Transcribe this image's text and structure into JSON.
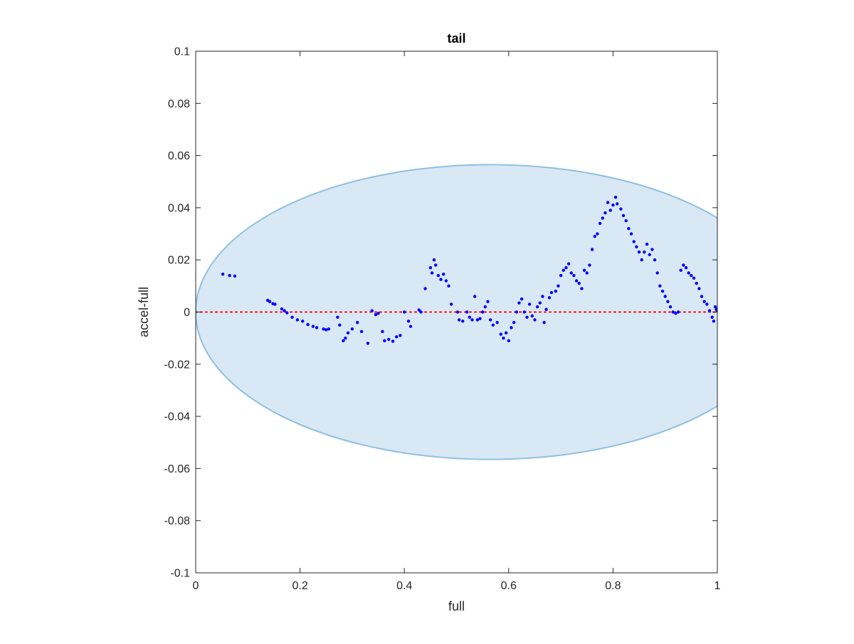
{
  "chart_data": {
    "type": "scatter",
    "title": "tail",
    "xlabel": "full",
    "ylabel": "accel-full",
    "xlim": [
      0,
      1
    ],
    "ylim": [
      -0.1,
      0.1
    ],
    "x_ticks": [
      0,
      0.2,
      0.4,
      0.6,
      0.8,
      1
    ],
    "x_tick_labels": [
      "0",
      "0.2",
      "0.4",
      "0.6",
      "0.8",
      "1"
    ],
    "y_ticks": [
      -0.1,
      -0.08,
      -0.06,
      -0.04,
      -0.02,
      0,
      0.02,
      0.04,
      0.06,
      0.08,
      0.1
    ],
    "y_tick_labels": [
      "-0.1",
      "-0.08",
      "-0.06",
      "-0.04",
      "-0.02",
      "0",
      "0.02",
      "0.04",
      "0.06",
      "0.08",
      "0.1"
    ],
    "grid": false,
    "colors": {
      "points": "#0000ff",
      "reference_line": "#ff0000",
      "ellipse_fill": "#d9e8f5",
      "ellipse_edge": "#8ec0e0",
      "axes": "#262626"
    },
    "ellipse": {
      "center": [
        0.565,
        0
      ],
      "radius_x": 0.565,
      "radius_y": 0.0565
    },
    "reference_line": {
      "y": 0
    },
    "series": [
      {
        "points": [
          [
            0.052,
            0.0145
          ],
          [
            0.065,
            0.014
          ],
          [
            0.075,
            0.0138
          ],
          [
            0.138,
            0.0045
          ],
          [
            0.142,
            0.004
          ],
          [
            0.148,
            0.0032
          ],
          [
            0.152,
            0.003
          ],
          [
            0.165,
            0.0012
          ],
          [
            0.17,
            0.0005
          ],
          [
            0.175,
            -0.0003
          ],
          [
            0.185,
            -0.002
          ],
          [
            0.195,
            -0.003
          ],
          [
            0.205,
            -0.0035
          ],
          [
            0.215,
            -0.0048
          ],
          [
            0.225,
            -0.0055
          ],
          [
            0.232,
            -0.006
          ],
          [
            0.245,
            -0.0065
          ],
          [
            0.25,
            -0.0068
          ],
          [
            0.255,
            -0.0065
          ],
          [
            0.272,
            -0.002
          ],
          [
            0.276,
            -0.005
          ],
          [
            0.283,
            -0.011
          ],
          [
            0.287,
            -0.01
          ],
          [
            0.292,
            -0.008
          ],
          [
            0.3,
            -0.0065
          ],
          [
            0.31,
            -0.004
          ],
          [
            0.318,
            -0.0075
          ],
          [
            0.33,
            -0.012
          ],
          [
            0.338,
            0.0005
          ],
          [
            0.345,
            -0.001
          ],
          [
            0.35,
            -0.0005
          ],
          [
            0.358,
            -0.0075
          ],
          [
            0.362,
            -0.011
          ],
          [
            0.37,
            -0.0105
          ],
          [
            0.378,
            -0.0112
          ],
          [
            0.385,
            -0.0095
          ],
          [
            0.392,
            -0.009
          ],
          [
            0.4,
            0.0
          ],
          [
            0.408,
            -0.0035
          ],
          [
            0.412,
            -0.0055
          ],
          [
            0.428,
            0.0008
          ],
          [
            0.432,
            0.0
          ],
          [
            0.44,
            0.009
          ],
          [
            0.45,
            0.017
          ],
          [
            0.453,
            0.015
          ],
          [
            0.457,
            0.02
          ],
          [
            0.46,
            0.018
          ],
          [
            0.465,
            0.014
          ],
          [
            0.47,
            0.0125
          ],
          [
            0.475,
            0.0145
          ],
          [
            0.48,
            0.012
          ],
          [
            0.485,
            0.01
          ],
          [
            0.49,
            0.003
          ],
          [
            0.502,
            0.0
          ],
          [
            0.505,
            -0.003
          ],
          [
            0.512,
            -0.0035
          ],
          [
            0.52,
            0.0
          ],
          [
            0.525,
            -0.002
          ],
          [
            0.53,
            -0.003
          ],
          [
            0.535,
            0.006
          ],
          [
            0.54,
            -0.003
          ],
          [
            0.545,
            -0.0025
          ],
          [
            0.55,
            0.0
          ],
          [
            0.555,
            0.002
          ],
          [
            0.56,
            0.004
          ],
          [
            0.565,
            -0.003
          ],
          [
            0.57,
            -0.005
          ],
          [
            0.578,
            -0.004
          ],
          [
            0.585,
            -0.0085
          ],
          [
            0.59,
            -0.01
          ],
          [
            0.595,
            -0.008
          ],
          [
            0.6,
            -0.011
          ],
          [
            0.605,
            -0.006
          ],
          [
            0.61,
            -0.004
          ],
          [
            0.615,
            0.0
          ],
          [
            0.62,
            0.0035
          ],
          [
            0.625,
            0.005
          ],
          [
            0.63,
            0.0
          ],
          [
            0.635,
            -0.002
          ],
          [
            0.64,
            0.003
          ],
          [
            0.645,
            -0.0015
          ],
          [
            0.65,
            -0.003
          ],
          [
            0.655,
            0.002
          ],
          [
            0.66,
            0.0035
          ],
          [
            0.665,
            0.006
          ],
          [
            0.668,
            -0.004
          ],
          [
            0.672,
            0.001
          ],
          [
            0.678,
            0.0055
          ],
          [
            0.682,
            0.0075
          ],
          [
            0.69,
            0.008
          ],
          [
            0.695,
            0.01
          ],
          [
            0.7,
            0.014
          ],
          [
            0.705,
            0.016
          ],
          [
            0.71,
            0.017
          ],
          [
            0.715,
            0.0185
          ],
          [
            0.72,
            0.015
          ],
          [
            0.725,
            0.014
          ],
          [
            0.73,
            0.012
          ],
          [
            0.735,
            0.011
          ],
          [
            0.74,
            0.009
          ],
          [
            0.745,
            0.016
          ],
          [
            0.75,
            0.015
          ],
          [
            0.755,
            0.018
          ],
          [
            0.76,
            0.024
          ],
          [
            0.765,
            0.029
          ],
          [
            0.77,
            0.03
          ],
          [
            0.775,
            0.034
          ],
          [
            0.78,
            0.036
          ],
          [
            0.785,
            0.038
          ],
          [
            0.79,
            0.042
          ],
          [
            0.795,
            0.039
          ],
          [
            0.8,
            0.041
          ],
          [
            0.805,
            0.044
          ],
          [
            0.808,
            0.0415
          ],
          [
            0.815,
            0.0395
          ],
          [
            0.82,
            0.037
          ],
          [
            0.825,
            0.035
          ],
          [
            0.83,
            0.032
          ],
          [
            0.835,
            0.03
          ],
          [
            0.84,
            0.027
          ],
          [
            0.845,
            0.025
          ],
          [
            0.85,
            0.023
          ],
          [
            0.855,
            0.02
          ],
          [
            0.86,
            0.023
          ],
          [
            0.865,
            0.026
          ],
          [
            0.87,
            0.022
          ],
          [
            0.875,
            0.024
          ],
          [
            0.88,
            0.02
          ],
          [
            0.885,
            0.015
          ],
          [
            0.89,
            0.01
          ],
          [
            0.895,
            0.008
          ],
          [
            0.9,
            0.006
          ],
          [
            0.905,
            0.004
          ],
          [
            0.91,
            0.002
          ],
          [
            0.915,
            0.0
          ],
          [
            0.92,
            -0.0005
          ],
          [
            0.925,
            0.0
          ],
          [
            0.93,
            0.016
          ],
          [
            0.935,
            0.018
          ],
          [
            0.94,
            0.017
          ],
          [
            0.945,
            0.015
          ],
          [
            0.95,
            0.014
          ],
          [
            0.955,
            0.013
          ],
          [
            0.96,
            0.011
          ],
          [
            0.965,
            0.009
          ],
          [
            0.97,
            0.006
          ],
          [
            0.975,
            0.004
          ],
          [
            0.98,
            0.003
          ],
          [
            0.985,
            0.0005
          ],
          [
            0.99,
            -0.002
          ],
          [
            0.993,
            -0.0035
          ],
          [
            0.996,
            0.002
          ],
          [
            0.998,
            0.001
          ],
          [
            1.0,
            0.0005
          ]
        ]
      }
    ]
  }
}
